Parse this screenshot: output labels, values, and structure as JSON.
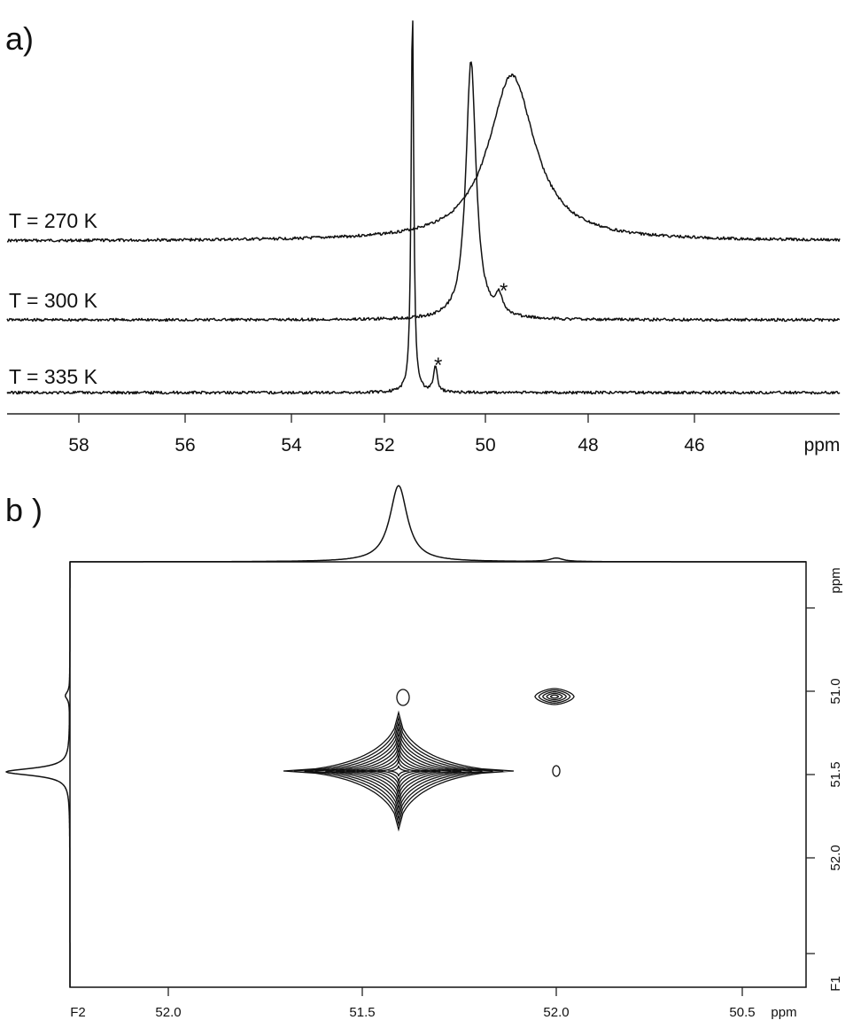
{
  "panel_a": {
    "label": "a)",
    "x_unit": "ppm",
    "x_ticks": [
      "58",
      "56",
      "54",
      "52",
      "50",
      "48",
      "46"
    ],
    "traces": [
      {
        "label": "T = 270 K"
      },
      {
        "label": "T = 300 K"
      },
      {
        "label": "T = 335 K"
      }
    ],
    "star": "*"
  },
  "panel_b": {
    "label": "b )",
    "f2_axis_label": "F2",
    "f2_unit": "ppm",
    "f2_ticks": [
      "52.0",
      "51.5",
      "52.0",
      "50.5"
    ],
    "f1_axis_label": "F1",
    "f1_unit": "ppm",
    "f1_ticks": [
      "51.0",
      "51.5",
      "52.0"
    ]
  },
  "chart_data": [
    {
      "type": "line",
      "title": "",
      "xlabel": "ppm",
      "xlim": [
        59.2,
        43.7
      ],
      "x_direction": "reversed (NMR)",
      "grid": false,
      "series": [
        {
          "name": "T = 270 K",
          "peaks": [
            {
              "x": 49.5,
              "height": 1.0,
              "width": 0.55
            }
          ]
        },
        {
          "name": "T = 300 K",
          "peaks": [
            {
              "x": 50.3,
              "height": 1.0,
              "width": 0.12
            },
            {
              "x": 49.75,
              "height": 0.07,
              "width": 0.08,
              "annotation": "*"
            }
          ]
        },
        {
          "name": "T = 335 K",
          "peaks": [
            {
              "x": 51.45,
              "height": 1.0,
              "width": 0.03
            },
            {
              "x": 51.0,
              "height": 0.07,
              "width": 0.04,
              "annotation": "*"
            }
          ]
        }
      ]
    },
    {
      "type": "heatmap",
      "title": "",
      "xlabel": "F2 ppm",
      "ylabel": "F1 ppm",
      "x_tick_labels": [
        "52.0",
        "51.5",
        "52.0",
        "50.5"
      ],
      "y_tick_labels": [
        "51.0",
        "51.5",
        "52.0"
      ],
      "f2_projection_peaks": [
        {
          "x": 51.37,
          "height": 1.0
        },
        {
          "x": 51.07,
          "height": 0.05
        }
      ],
      "f1_projection_peaks": [
        {
          "y": 51.45,
          "height": 1.0
        },
        {
          "y": 51.03,
          "height": 0.07
        }
      ],
      "cross_peaks": [
        {
          "f2": 51.37,
          "f1": 51.45,
          "intensity": "strong"
        },
        {
          "f2": 51.07,
          "f1": 51.03,
          "intensity": "medium"
        },
        {
          "f2": 51.36,
          "f1": 51.03,
          "intensity": "weak"
        },
        {
          "f2": 51.07,
          "f1": 51.45,
          "intensity": "weak"
        }
      ]
    }
  ]
}
